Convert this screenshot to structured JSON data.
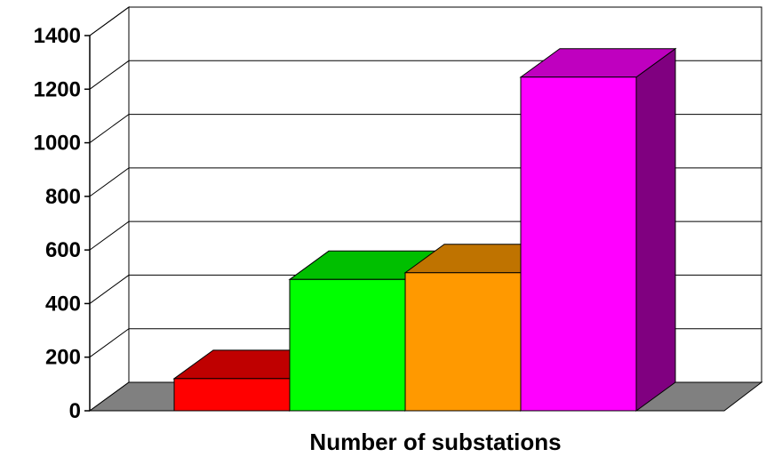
{
  "chart_data": {
    "type": "bar",
    "three_d": true,
    "title": "",
    "xlabel": "Number of substations",
    "ylabel": "",
    "ylim": [
      0,
      1400
    ],
    "yticks": [
      "0",
      "200",
      "400",
      "600",
      "800",
      "1000",
      "1200",
      "1400"
    ],
    "grid": true,
    "legend": "none",
    "series": [
      {
        "value": 120,
        "color": "#ff0000"
      },
      {
        "value": 490,
        "color": "#00ff00"
      },
      {
        "value": 515,
        "color": "#ff9900"
      },
      {
        "value": 1245,
        "color": "#ff00ff"
      }
    ]
  }
}
